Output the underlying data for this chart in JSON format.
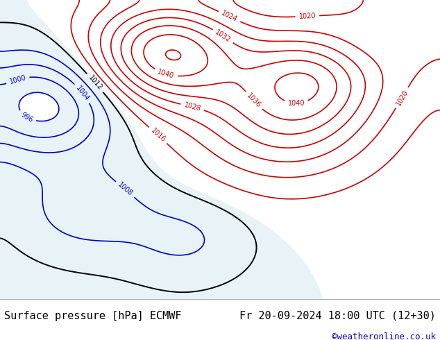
{
  "title_left": "Surface pressure [hPa] ECMWF",
  "title_right": "Fr 20-09-2024 18:00 UTC (12+30)",
  "copyright": "©weatheronline.co.uk",
  "bg_color": "#ffffff",
  "map_bg_color": "#aad4a0",
  "sea_color": "#d0e8f0",
  "land_color": "#c8e0b8",
  "footer_bg": "#ffffff",
  "footer_text_color": "#000000",
  "copyright_color": "#0000cc",
  "title_fontsize": 11,
  "copyright_fontsize": 9,
  "contour_red_color": "#cc0000",
  "contour_blue_color": "#0000cc",
  "contour_black_color": "#000000",
  "label_fontsize": 8
}
